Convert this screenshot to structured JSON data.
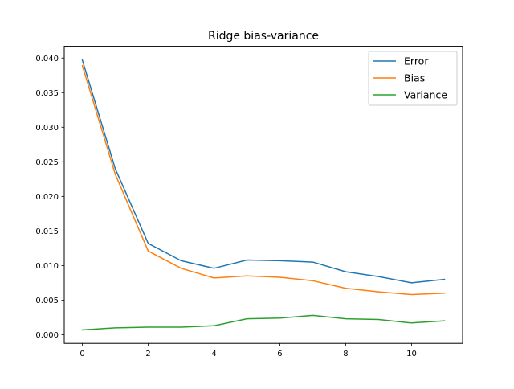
{
  "chart_data": {
    "type": "line",
    "title": "Ridge bias-variance",
    "xlabel": "",
    "ylabel": "",
    "x": [
      0,
      1,
      2,
      3,
      4,
      5,
      6,
      7,
      8,
      9,
      10,
      11
    ],
    "xlim": [
      -0.55,
      11.55
    ],
    "ylim": [
      -0.00125,
      0.0417
    ],
    "xticks": [
      0,
      2,
      4,
      6,
      8,
      10
    ],
    "yticks": [
      0.0,
      0.005,
      0.01,
      0.015,
      0.02,
      0.025,
      0.03,
      0.035,
      0.04
    ],
    "xtick_labels": [
      "0",
      "2",
      "4",
      "6",
      "8",
      "10"
    ],
    "ytick_labels": [
      "0.000",
      "0.005",
      "0.010",
      "0.015",
      "0.020",
      "0.025",
      "0.030",
      "0.035",
      "0.040"
    ],
    "grid": false,
    "legend_position": "top-right",
    "series": [
      {
        "name": "Error",
        "color": "#1f77b4",
        "values": [
          0.0397,
          0.024,
          0.0132,
          0.0107,
          0.0096,
          0.0108,
          0.0107,
          0.0105,
          0.0091,
          0.0084,
          0.0075,
          0.008
        ]
      },
      {
        "name": "Bias",
        "color": "#ff7f0e",
        "values": [
          0.0389,
          0.0232,
          0.0121,
          0.0096,
          0.0082,
          0.0085,
          0.0083,
          0.0078,
          0.0067,
          0.0062,
          0.0058,
          0.006
        ]
      },
      {
        "name": "Variance",
        "color": "#2ca02c",
        "values": [
          0.0007,
          0.001,
          0.0011,
          0.0011,
          0.0013,
          0.0023,
          0.0024,
          0.0028,
          0.0023,
          0.0022,
          0.0017,
          0.002
        ]
      }
    ]
  }
}
